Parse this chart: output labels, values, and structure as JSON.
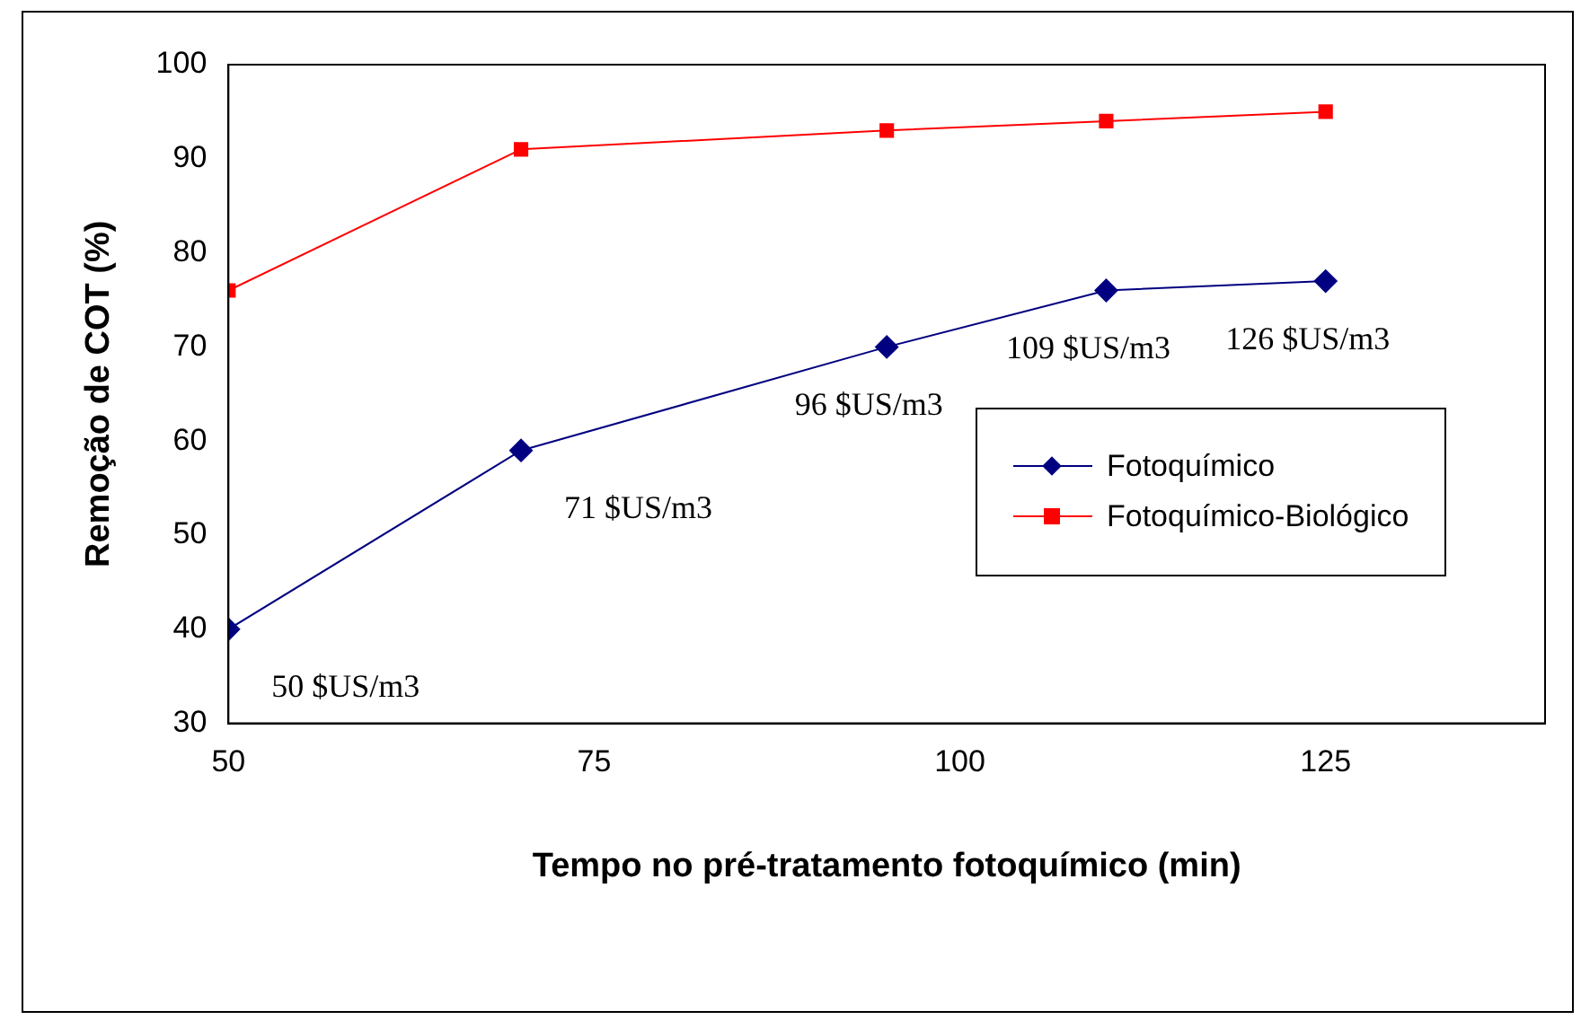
{
  "chart_data": {
    "type": "line",
    "xlabel": "Tempo no pré-tratamento fotoquímico (min)",
    "ylabel": "Remoção de COT (%)",
    "x": [
      50,
      70,
      95,
      110,
      125
    ],
    "series": [
      {
        "name": "Fotoquímico",
        "color": "#000080",
        "marker": "diamond",
        "values": [
          40,
          59,
          70,
          76,
          77
        ]
      },
      {
        "name": "Fotoquímico-Biológico",
        "color": "#ff0000",
        "marker": "square",
        "values": [
          76,
          91,
          93,
          94,
          95
        ]
      }
    ],
    "xlim": [
      50,
      140
    ],
    "xticks": [
      50,
      75,
      100,
      125
    ],
    "ylim": [
      30,
      100
    ],
    "yticks": [
      30,
      40,
      50,
      60,
      70,
      80,
      90,
      100
    ],
    "grid": false,
    "legend": "right",
    "line_style": "solid",
    "annotations": [
      {
        "text": "50 $US/m3",
        "x": 50,
        "y": 40
      },
      {
        "text": "71 $US/m3",
        "x": 70,
        "y": 59
      },
      {
        "text": "96 $US/m3",
        "x": 95,
        "y": 70
      },
      {
        "text": "109 $US/m3",
        "x": 110,
        "y": 76
      },
      {
        "text": "126 $US/m3",
        "x": 125,
        "y": 77
      }
    ]
  }
}
